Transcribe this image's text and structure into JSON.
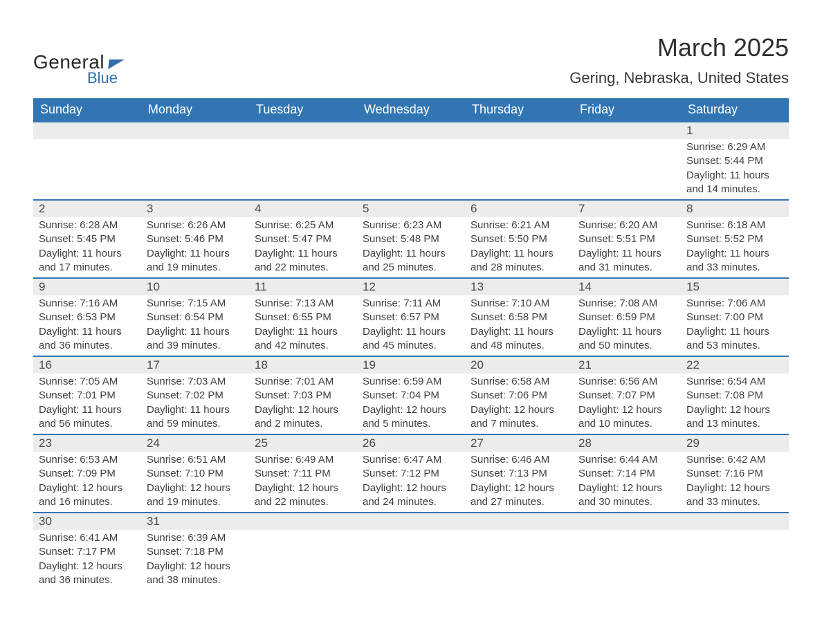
{
  "logo": {
    "word1": "General",
    "word2": "Blue"
  },
  "title": "March 2025",
  "location": "Gering, Nebraska, United States",
  "weekdays": [
    "Sunday",
    "Monday",
    "Tuesday",
    "Wednesday",
    "Thursday",
    "Friday",
    "Saturday"
  ],
  "colors": {
    "header_bg": "#3176b3",
    "header_fg": "#ffffff",
    "daynum_bg": "#ececec",
    "row_border": "#3176b3",
    "text": "#3a3a3a",
    "logo_blue": "#2f6fa8"
  },
  "weeks": [
    [
      null,
      null,
      null,
      null,
      null,
      null,
      {
        "n": "1",
        "sr": "6:29 AM",
        "ss": "5:44 PM",
        "dl": "11 hours and 14 minutes."
      }
    ],
    [
      {
        "n": "2",
        "sr": "6:28 AM",
        "ss": "5:45 PM",
        "dl": "11 hours and 17 minutes."
      },
      {
        "n": "3",
        "sr": "6:26 AM",
        "ss": "5:46 PM",
        "dl": "11 hours and 19 minutes."
      },
      {
        "n": "4",
        "sr": "6:25 AM",
        "ss": "5:47 PM",
        "dl": "11 hours and 22 minutes."
      },
      {
        "n": "5",
        "sr": "6:23 AM",
        "ss": "5:48 PM",
        "dl": "11 hours and 25 minutes."
      },
      {
        "n": "6",
        "sr": "6:21 AM",
        "ss": "5:50 PM",
        "dl": "11 hours and 28 minutes."
      },
      {
        "n": "7",
        "sr": "6:20 AM",
        "ss": "5:51 PM",
        "dl": "11 hours and 31 minutes."
      },
      {
        "n": "8",
        "sr": "6:18 AM",
        "ss": "5:52 PM",
        "dl": "11 hours and 33 minutes."
      }
    ],
    [
      {
        "n": "9",
        "sr": "7:16 AM",
        "ss": "6:53 PM",
        "dl": "11 hours and 36 minutes."
      },
      {
        "n": "10",
        "sr": "7:15 AM",
        "ss": "6:54 PM",
        "dl": "11 hours and 39 minutes."
      },
      {
        "n": "11",
        "sr": "7:13 AM",
        "ss": "6:55 PM",
        "dl": "11 hours and 42 minutes."
      },
      {
        "n": "12",
        "sr": "7:11 AM",
        "ss": "6:57 PM",
        "dl": "11 hours and 45 minutes."
      },
      {
        "n": "13",
        "sr": "7:10 AM",
        "ss": "6:58 PM",
        "dl": "11 hours and 48 minutes."
      },
      {
        "n": "14",
        "sr": "7:08 AM",
        "ss": "6:59 PM",
        "dl": "11 hours and 50 minutes."
      },
      {
        "n": "15",
        "sr": "7:06 AM",
        "ss": "7:00 PM",
        "dl": "11 hours and 53 minutes."
      }
    ],
    [
      {
        "n": "16",
        "sr": "7:05 AM",
        "ss": "7:01 PM",
        "dl": "11 hours and 56 minutes."
      },
      {
        "n": "17",
        "sr": "7:03 AM",
        "ss": "7:02 PM",
        "dl": "11 hours and 59 minutes."
      },
      {
        "n": "18",
        "sr": "7:01 AM",
        "ss": "7:03 PM",
        "dl": "12 hours and 2 minutes."
      },
      {
        "n": "19",
        "sr": "6:59 AM",
        "ss": "7:04 PM",
        "dl": "12 hours and 5 minutes."
      },
      {
        "n": "20",
        "sr": "6:58 AM",
        "ss": "7:06 PM",
        "dl": "12 hours and 7 minutes."
      },
      {
        "n": "21",
        "sr": "6:56 AM",
        "ss": "7:07 PM",
        "dl": "12 hours and 10 minutes."
      },
      {
        "n": "22",
        "sr": "6:54 AM",
        "ss": "7:08 PM",
        "dl": "12 hours and 13 minutes."
      }
    ],
    [
      {
        "n": "23",
        "sr": "6:53 AM",
        "ss": "7:09 PM",
        "dl": "12 hours and 16 minutes."
      },
      {
        "n": "24",
        "sr": "6:51 AM",
        "ss": "7:10 PM",
        "dl": "12 hours and 19 minutes."
      },
      {
        "n": "25",
        "sr": "6:49 AM",
        "ss": "7:11 PM",
        "dl": "12 hours and 22 minutes."
      },
      {
        "n": "26",
        "sr": "6:47 AM",
        "ss": "7:12 PM",
        "dl": "12 hours and 24 minutes."
      },
      {
        "n": "27",
        "sr": "6:46 AM",
        "ss": "7:13 PM",
        "dl": "12 hours and 27 minutes."
      },
      {
        "n": "28",
        "sr": "6:44 AM",
        "ss": "7:14 PM",
        "dl": "12 hours and 30 minutes."
      },
      {
        "n": "29",
        "sr": "6:42 AM",
        "ss": "7:16 PM",
        "dl": "12 hours and 33 minutes."
      }
    ],
    [
      {
        "n": "30",
        "sr": "6:41 AM",
        "ss": "7:17 PM",
        "dl": "12 hours and 36 minutes."
      },
      {
        "n": "31",
        "sr": "6:39 AM",
        "ss": "7:18 PM",
        "dl": "12 hours and 38 minutes."
      },
      null,
      null,
      null,
      null,
      null
    ]
  ],
  "labels": {
    "sunrise": "Sunrise: ",
    "sunset": "Sunset: ",
    "daylight": "Daylight: "
  }
}
